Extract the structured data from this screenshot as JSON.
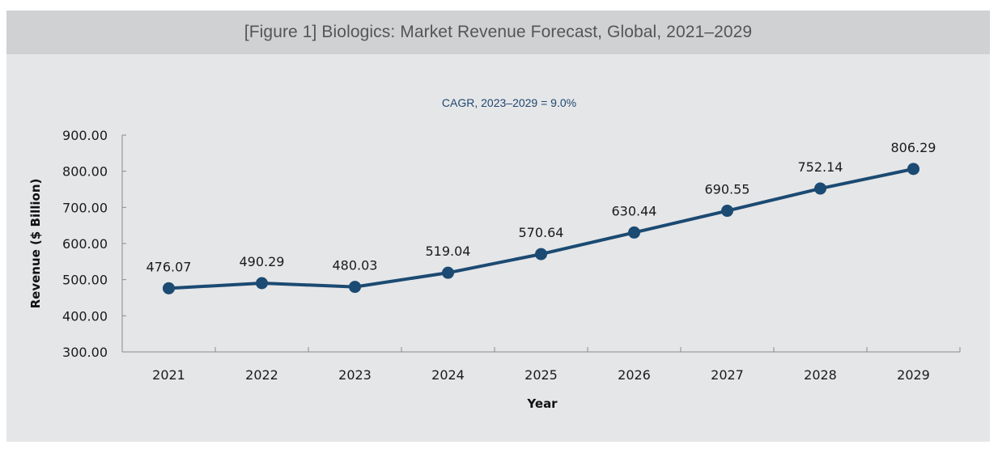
{
  "figure": {
    "title": "[Figure 1] Biologics: Market Revenue Forecast, Global, 2021–2029"
  },
  "chart_data": {
    "type": "line",
    "title": "[Figure 1] Biologics: Market Revenue Forecast, Global, 2021–2029",
    "subtitle": "CAGR, 2023–2029 = 9.0%",
    "xlabel": "Year",
    "ylabel": "Revenue ($ Billion)",
    "categories": [
      "2021",
      "2022",
      "2023",
      "2024",
      "2025",
      "2026",
      "2027",
      "2028",
      "2029"
    ],
    "series": [
      {
        "name": "Revenue",
        "values": [
          476.07,
          490.29,
          480.03,
          519.04,
          570.64,
          630.44,
          690.55,
          752.14,
          806.29
        ],
        "labels": [
          "476.07",
          "490.29",
          "480.03",
          "519.04",
          "570.64",
          "630.44",
          "690.55",
          "752.14",
          "806.29"
        ],
        "color": "#1b4a72"
      }
    ],
    "ylim": [
      300,
      900
    ],
    "yticks": [
      300,
      400,
      500,
      600,
      700,
      800,
      900
    ],
    "ytick_labels": [
      "300.00",
      "400.00",
      "500.00",
      "600.00",
      "700.00",
      "800.00",
      "900.00"
    ],
    "grid": false,
    "legend": "none",
    "data_labels": true
  },
  "colors": {
    "header_bg": "#d0d1d3",
    "panel_bg": "#e5e6e8",
    "line": "#1b4a72",
    "subtitle": "#1f4770",
    "axis": "#8a8a8a"
  }
}
